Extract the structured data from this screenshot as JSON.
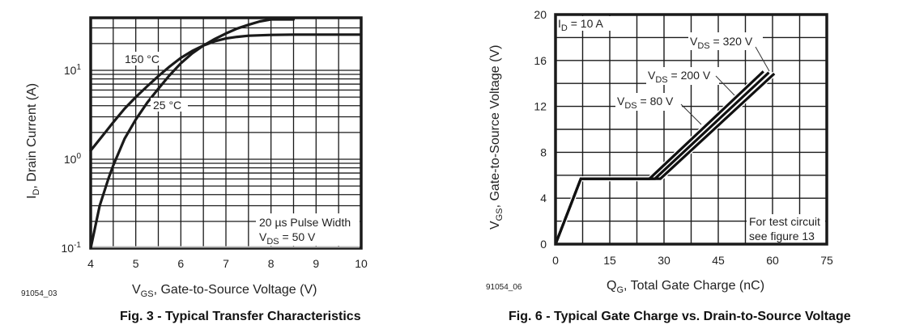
{
  "chart_data": [
    {
      "type": "line",
      "title": "Fig. 3 - Typical Transfer Characteristics",
      "figure_id": "91054_03",
      "xlabel": "VGS, Gate-to-Source Voltage (V)",
      "xlabel_main": "V",
      "xlabel_sub": "GS",
      "xlabel_rest": ", Gate-to-Source Voltage (V)",
      "ylabel": "ID, Drain Current (A)",
      "ylabel_main": "I",
      "ylabel_sub": "D",
      "ylabel_rest": ", Drain Current (A)",
      "xlim": [
        4,
        10
      ],
      "ylim": [
        0.1,
        39
      ],
      "yscale": "log",
      "x_ticks": [
        "4",
        "5",
        "6",
        "7",
        "8",
        "9",
        "10"
      ],
      "y_ticks": [
        {
          "base": "10",
          "exp": "1",
          "value": 10
        },
        {
          "base": "10",
          "exp": "0",
          "value": 1
        },
        {
          "base": "10",
          "exp": "-1",
          "value": 0.1
        }
      ],
      "grid": true,
      "annotation_lines": [
        "20 µs Pulse Width",
        "VDS = 50 V"
      ],
      "annotation_line1": "20 µs Pulse Width",
      "annotation_line2_main": "V",
      "annotation_line2_sub": "DS",
      "annotation_line2_rest": " = 50 V",
      "series": [
        {
          "name": "150 °C",
          "x": [
            4.0,
            4.25,
            4.5,
            4.75,
            5.0,
            5.25,
            5.5,
            5.75,
            6.0,
            6.25,
            6.5,
            6.75,
            7.0,
            7.25,
            7.5,
            8.0,
            8.5,
            9.0,
            10.0
          ],
          "y": [
            1.25,
            1.8,
            2.6,
            3.7,
            5.0,
            6.6,
            8.6,
            11.0,
            13.8,
            16.5,
            19.0,
            21.2,
            22.8,
            23.8,
            24.5,
            25.0,
            25.2,
            25.2,
            25.2
          ]
        },
        {
          "name": "25 °C",
          "x": [
            4.0,
            4.2,
            4.4,
            4.5,
            4.75,
            5.0,
            5.25,
            5.5,
            5.75,
            6.0,
            6.25,
            6.5,
            6.75,
            7.0,
            7.25,
            7.5,
            7.75,
            8.0,
            8.25,
            8.5
          ],
          "y": [
            0.1,
            0.3,
            0.62,
            0.85,
            1.7,
            2.8,
            4.3,
            6.2,
            8.8,
            12.0,
            15.5,
            19.0,
            22.5,
            26.0,
            29.5,
            32.5,
            35.5,
            37.5,
            38.5,
            38.7
          ]
        }
      ],
      "series_labels": [
        "150 °C",
        "25 °C"
      ]
    },
    {
      "type": "line",
      "title": "Fig. 6 - Typical Gate Charge vs. Drain-to-Source Voltage",
      "figure_id": "91054_06",
      "xlabel": "QG, Total Gate Charge (nC)",
      "xlabel_main": "Q",
      "xlabel_sub": "G",
      "xlabel_rest": ", Total Gate Charge (nC)",
      "ylabel": "VGS, Gate-to-Source Voltage (V)",
      "ylabel_main": "V",
      "ylabel_sub": "GS",
      "ylabel_rest": ", Gate-to-Source Voltage (V)",
      "xlim": [
        0,
        75
      ],
      "ylim": [
        0,
        20
      ],
      "x_ticks": [
        "0",
        "15",
        "30",
        "45",
        "60",
        "75"
      ],
      "y_ticks": [
        "0",
        "4",
        "8",
        "12",
        "16",
        "20"
      ],
      "grid": true,
      "condition_main": "I",
      "condition_sub": "D",
      "condition_rest": " = 10 A",
      "condition": "ID = 10 A",
      "note_lines": [
        "For test circuit",
        "see figure 13"
      ],
      "series": [
        {
          "name": "VDS = 80 V",
          "label_main": "V",
          "label_sub": "DS",
          "label_rest": " = 80 V",
          "x": [
            0,
            7,
            26,
            57.5
          ],
          "y": [
            0,
            5.7,
            5.7,
            15.05
          ]
        },
        {
          "name": "VDS = 200 V",
          "label_main": "V",
          "label_sub": "DS",
          "label_rest": " = 200 V",
          "x": [
            0,
            7,
            27.5,
            59
          ],
          "y": [
            0,
            5.7,
            5.7,
            14.95
          ]
        },
        {
          "name": "VDS = 320 V",
          "label_main": "V",
          "label_sub": "DS",
          "label_rest": " = 320 V",
          "x": [
            0,
            7,
            29,
            60.5
          ],
          "y": [
            0,
            5.7,
            5.7,
            14.85
          ]
        }
      ]
    }
  ],
  "captions": {
    "fig3": "Fig. 3 - Typical Transfer Characteristics",
    "fig6": "Fig. 6 - Typical Gate Charge vs. Drain-to-Source Voltage"
  }
}
